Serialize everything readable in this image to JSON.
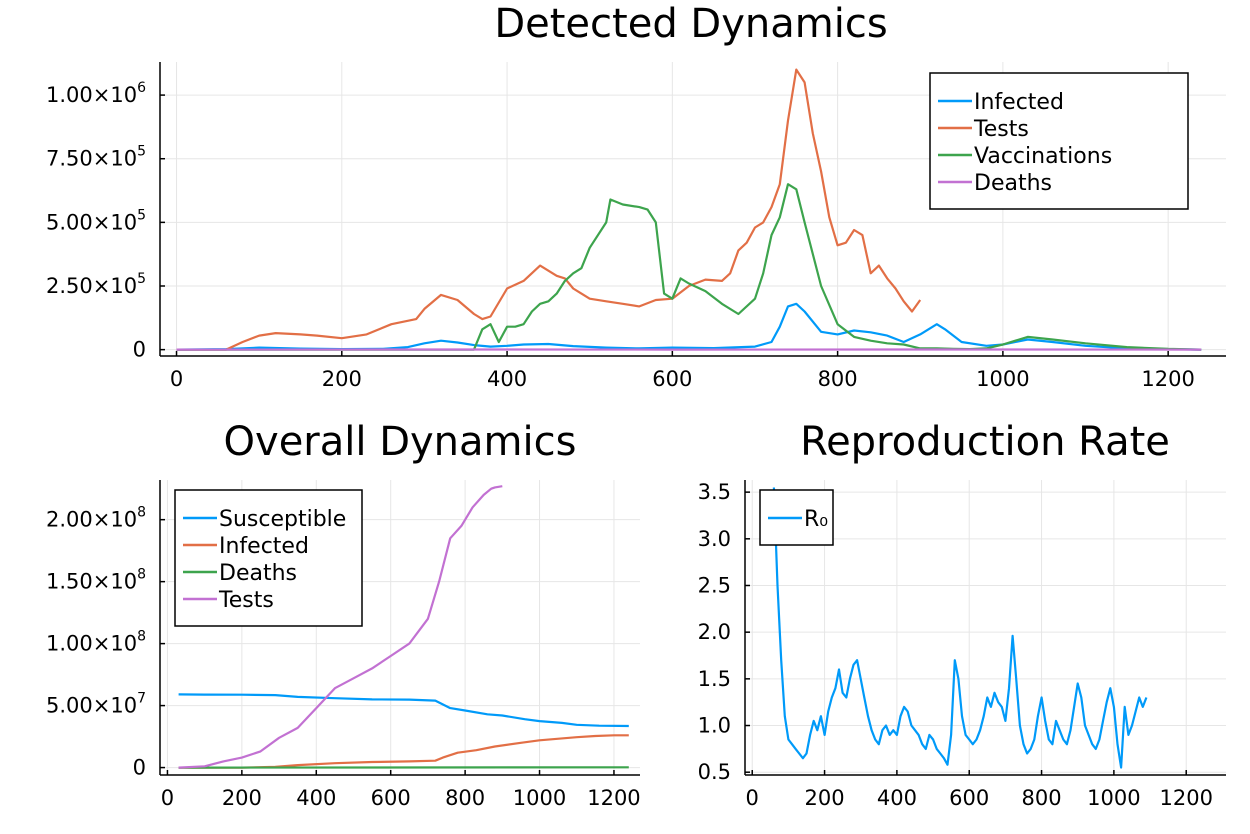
{
  "colors": {
    "c1": "#009af9",
    "c2": "#e26f46",
    "c3": "#3da44d",
    "c4": "#c271d2"
  },
  "chart_data": [
    {
      "type": "line",
      "title": "Detected Dynamics",
      "xlim": [
        -20,
        1270
      ],
      "ylim": [
        -25000,
        1130000
      ],
      "xticks": [
        0,
        200,
        400,
        600,
        800,
        1000,
        1200
      ],
      "xtick_labels": [
        "0",
        "200",
        "400",
        "600",
        "800",
        "1000",
        "1200"
      ],
      "yticks": [
        0,
        250000,
        500000,
        750000,
        1000000
      ],
      "ytick_labels": [
        {
          "base": "0",
          "exp": ""
        },
        {
          "base": "2.50×10",
          "exp": "5"
        },
        {
          "base": "5.00×10",
          "exp": "5"
        },
        {
          "base": "7.50×10",
          "exp": "5"
        },
        {
          "base": "1.00×10",
          "exp": "6"
        }
      ],
      "legend_position": "top-right",
      "series": [
        {
          "name": "Infected",
          "color": "#009af9",
          "x": [
            0,
            60,
            100,
            150,
            200,
            250,
            280,
            300,
            320,
            340,
            360,
            380,
            400,
            420,
            450,
            480,
            520,
            560,
            600,
            650,
            700,
            720,
            730,
            740,
            750,
            760,
            780,
            800,
            820,
            840,
            860,
            880,
            900,
            920,
            930,
            950,
            980,
            1000,
            1030,
            1060,
            1100,
            1150,
            1200,
            1240
          ],
          "y": [
            0,
            2000,
            8000,
            4000,
            2000,
            3000,
            10000,
            25000,
            35000,
            28000,
            18000,
            12000,
            15000,
            20000,
            22000,
            14000,
            8000,
            5000,
            8000,
            6000,
            12000,
            30000,
            90000,
            170000,
            180000,
            150000,
            70000,
            60000,
            75000,
            68000,
            55000,
            30000,
            60000,
            100000,
            80000,
            30000,
            15000,
            20000,
            40000,
            30000,
            15000,
            5000,
            2000,
            0
          ]
        },
        {
          "name": "Tests",
          "color": "#e26f46",
          "x": [
            0,
            60,
            80,
            100,
            120,
            150,
            170,
            200,
            230,
            260,
            290,
            300,
            320,
            340,
            360,
            370,
            380,
            400,
            420,
            440,
            460,
            470,
            480,
            490,
            500,
            520,
            540,
            560,
            580,
            600,
            620,
            640,
            660,
            670,
            680,
            690,
            700,
            710,
            720,
            730,
            740,
            750,
            760,
            770,
            780,
            790,
            800,
            810,
            820,
            830,
            840,
            850,
            860,
            870,
            880,
            890,
            900
          ],
          "y": [
            0,
            0,
            30000,
            55000,
            65000,
            60000,
            55000,
            45000,
            60000,
            100000,
            120000,
            160000,
            215000,
            195000,
            140000,
            120000,
            130000,
            240000,
            270000,
            330000,
            290000,
            280000,
            240000,
            220000,
            200000,
            190000,
            180000,
            170000,
            195000,
            200000,
            250000,
            275000,
            270000,
            300000,
            390000,
            420000,
            480000,
            500000,
            560000,
            650000,
            900000,
            1100000,
            1050000,
            850000,
            700000,
            520000,
            410000,
            420000,
            470000,
            450000,
            300000,
            330000,
            280000,
            240000,
            190000,
            150000,
            195000
          ]
        },
        {
          "name": "Vaccinations",
          "color": "#3da44d",
          "x": [
            0,
            360,
            370,
            380,
            390,
            400,
            410,
            420,
            430,
            440,
            450,
            460,
            470,
            480,
            490,
            500,
            520,
            525,
            540,
            560,
            570,
            580,
            590,
            600,
            610,
            620,
            640,
            660,
            680,
            700,
            710,
            720,
            730,
            740,
            750,
            760,
            780,
            800,
            820,
            840,
            860,
            880,
            900,
            920,
            940,
            960,
            980,
            1000,
            1030,
            1060,
            1100,
            1150,
            1200,
            1240
          ],
          "y": [
            0,
            0,
            80000,
            100000,
            30000,
            90000,
            90000,
            100000,
            150000,
            180000,
            190000,
            220000,
            270000,
            300000,
            320000,
            400000,
            500000,
            590000,
            570000,
            560000,
            550000,
            500000,
            220000,
            200000,
            280000,
            260000,
            230000,
            180000,
            140000,
            200000,
            300000,
            450000,
            520000,
            650000,
            630000,
            500000,
            250000,
            100000,
            50000,
            35000,
            25000,
            20000,
            5000,
            5000,
            3000,
            2000,
            5000,
            20000,
            50000,
            40000,
            25000,
            10000,
            3000,
            0
          ]
        },
        {
          "name": "Deaths",
          "color": "#c271d2",
          "x": [
            0,
            300,
            600,
            900,
            1240
          ],
          "y": [
            0,
            500,
            300,
            600,
            200
          ]
        }
      ]
    },
    {
      "type": "line",
      "title": "Overall Dynamics",
      "xlim": [
        -20,
        1270
      ],
      "ylim": [
        -6000000,
        232000000
      ],
      "xticks": [
        0,
        200,
        400,
        600,
        800,
        1000,
        1200
      ],
      "xtick_labels": [
        "0",
        "200",
        "400",
        "600",
        "800",
        "1000",
        "1200"
      ],
      "yticks": [
        0,
        50000000,
        100000000,
        150000000,
        200000000
      ],
      "ytick_labels": [
        {
          "base": "0",
          "exp": ""
        },
        {
          "base": "5.00×10",
          "exp": "7"
        },
        {
          "base": "1.00×10",
          "exp": "8"
        },
        {
          "base": "1.50×10",
          "exp": "8"
        },
        {
          "base": "2.00×10",
          "exp": "8"
        }
      ],
      "legend_position": "top-left",
      "series": [
        {
          "name": "Susceptible",
          "color": "#009af9",
          "x": [
            30,
            100,
            200,
            290,
            350,
            450,
            550,
            650,
            720,
            760,
            800,
            860,
            900,
            960,
            1000,
            1060,
            1100,
            1160,
            1240
          ],
          "y": [
            59000000,
            58900000,
            58800000,
            58500000,
            57000000,
            56000000,
            55000000,
            54800000,
            54000000,
            48000000,
            46000000,
            43000000,
            42000000,
            39000000,
            37500000,
            36000000,
            34500000,
            33800000,
            33500000
          ]
        },
        {
          "name": "Infected",
          "color": "#e26f46",
          "x": [
            30,
            200,
            290,
            350,
            450,
            550,
            650,
            720,
            740,
            780,
            830,
            880,
            950,
            1000,
            1100,
            1150,
            1200,
            1240
          ],
          "y": [
            0,
            0,
            500000,
            2000000,
            3500000,
            4500000,
            5000000,
            5500000,
            8000000,
            12000000,
            14000000,
            17000000,
            20000000,
            22000000,
            24500000,
            25500000,
            26000000,
            26000000
          ]
        },
        {
          "name": "Deaths",
          "color": "#3da44d",
          "x": [
            30,
            1240
          ],
          "y": [
            0,
            200000
          ]
        },
        {
          "name": "Tests",
          "color": "#c271d2",
          "x": [
            30,
            100,
            150,
            200,
            250,
            300,
            350,
            400,
            450,
            500,
            550,
            600,
            650,
            700,
            730,
            760,
            790,
            820,
            850,
            870,
            880,
            900
          ],
          "y": [
            0,
            1000000,
            5000000,
            8000000,
            13000000,
            24000000,
            32000000,
            48000000,
            64000000,
            72000000,
            80000000,
            90000000,
            100000000,
            120000000,
            150000000,
            185000000,
            195000000,
            210000000,
            220000000,
            225000000,
            226000000,
            227000000
          ]
        }
      ]
    },
    {
      "type": "line",
      "title": "Reproduction Rate",
      "xlim": [
        -20,
        1310
      ],
      "ylim": [
        0.47,
        3.63
      ],
      "xticks": [
        0,
        200,
        400,
        600,
        800,
        1000,
        1200
      ],
      "xtick_labels": [
        "0",
        "200",
        "400",
        "600",
        "800",
        "1000",
        "1200"
      ],
      "yticks": [
        0.5,
        1.0,
        1.5,
        2.0,
        2.5,
        3.0,
        3.5
      ],
      "ytick_labels": [
        {
          "base": "0.5",
          "exp": ""
        },
        {
          "base": "1.0",
          "exp": ""
        },
        {
          "base": "1.5",
          "exp": ""
        },
        {
          "base": "2.0",
          "exp": ""
        },
        {
          "base": "2.5",
          "exp": ""
        },
        {
          "base": "3.0",
          "exp": ""
        },
        {
          "base": "3.5",
          "exp": ""
        }
      ],
      "legend_position": "top-left",
      "series": [
        {
          "name": "R₀",
          "color": "#009af9",
          "x": [
            60,
            70,
            80,
            90,
            100,
            110,
            120,
            130,
            140,
            150,
            160,
            170,
            180,
            190,
            200,
            210,
            220,
            230,
            240,
            250,
            260,
            270,
            280,
            290,
            300,
            310,
            320,
            330,
            340,
            350,
            360,
            370,
            380,
            390,
            400,
            410,
            420,
            430,
            440,
            450,
            460,
            470,
            480,
            490,
            500,
            510,
            520,
            530,
            540,
            550,
            560,
            570,
            580,
            590,
            600,
            610,
            620,
            630,
            640,
            650,
            660,
            670,
            680,
            690,
            700,
            710,
            720,
            730,
            740,
            750,
            760,
            770,
            780,
            790,
            800,
            810,
            820,
            830,
            840,
            850,
            860,
            870,
            880,
            890,
            900,
            910,
            920,
            930,
            940,
            950,
            960,
            970,
            980,
            990,
            1000,
            1010,
            1020,
            1030,
            1040,
            1050,
            1060,
            1070,
            1080,
            1090
          ],
          "y": [
            3.55,
            2.5,
            1.7,
            1.1,
            0.85,
            0.8,
            0.75,
            0.7,
            0.65,
            0.7,
            0.9,
            1.05,
            0.95,
            1.1,
            0.9,
            1.15,
            1.3,
            1.4,
            1.6,
            1.35,
            1.3,
            1.5,
            1.65,
            1.7,
            1.5,
            1.3,
            1.1,
            0.95,
            0.85,
            0.8,
            0.95,
            1.0,
            0.9,
            0.95,
            0.9,
            1.1,
            1.2,
            1.15,
            1.0,
            0.95,
            0.9,
            0.8,
            0.75,
            0.9,
            0.85,
            0.75,
            0.7,
            0.65,
            0.58,
            0.9,
            1.7,
            1.5,
            1.1,
            0.9,
            0.85,
            0.8,
            0.85,
            0.95,
            1.1,
            1.3,
            1.2,
            1.35,
            1.25,
            1.2,
            1.05,
            1.4,
            1.96,
            1.5,
            1.0,
            0.8,
            0.7,
            0.75,
            0.85,
            1.1,
            1.3,
            1.05,
            0.85,
            0.8,
            1.05,
            0.95,
            0.85,
            0.8,
            0.95,
            1.2,
            1.45,
            1.3,
            1.0,
            0.9,
            0.8,
            0.75,
            0.85,
            1.05,
            1.25,
            1.4,
            1.2,
            0.8,
            0.55,
            1.2,
            0.9,
            1.0,
            1.15,
            1.3,
            1.2,
            1.3
          ]
        }
      ]
    }
  ]
}
